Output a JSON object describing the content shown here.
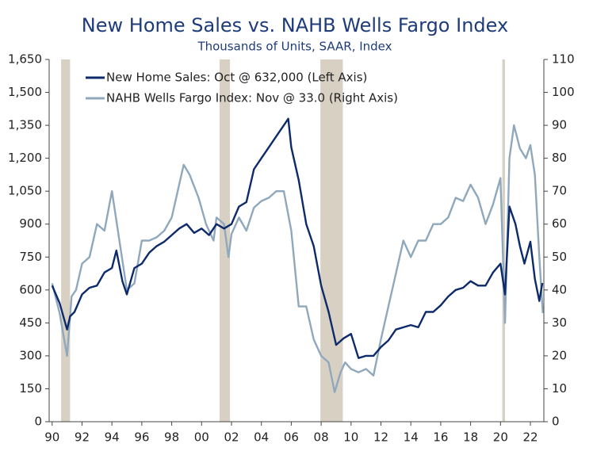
{
  "chart_data": {
    "type": "line",
    "title": "New Home Sales vs. NAHB Wells Fargo Index",
    "subtitle": "Thousands of Units, SAAR, Index",
    "legend": "upper left",
    "recession_color": "#d8d1c3",
    "recessions": [
      [
        1990.6,
        1991.2
      ],
      [
        2001.2,
        2001.9
      ],
      [
        2007.95,
        2009.45
      ],
      [
        2020.12,
        2020.3
      ]
    ],
    "xlim": [
      1989.8,
      2022.9
    ],
    "xticks": [
      {
        "value": 1990,
        "label": "90"
      },
      {
        "value": 1992,
        "label": "92"
      },
      {
        "value": 1994,
        "label": "94"
      },
      {
        "value": 1996,
        "label": "96"
      },
      {
        "value": 1998,
        "label": "98"
      },
      {
        "value": 2000,
        "label": "00"
      },
      {
        "value": 2002,
        "label": "02"
      },
      {
        "value": 2004,
        "label": "04"
      },
      {
        "value": 2006,
        "label": "06"
      },
      {
        "value": 2008,
        "label": "08"
      },
      {
        "value": 2010,
        "label": "10"
      },
      {
        "value": 2012,
        "label": "12"
      },
      {
        "value": 2014,
        "label": "14"
      },
      {
        "value": 2016,
        "label": "16"
      },
      {
        "value": 2018,
        "label": "18"
      },
      {
        "value": 2020,
        "label": "20"
      },
      {
        "value": 2022,
        "label": "22"
      }
    ],
    "ylim": [
      0,
      1650
    ],
    "yticks": [
      0,
      150,
      300,
      450,
      600,
      750,
      900,
      {
        "value": 1050,
        "label": "1,050"
      },
      {
        "value": 1200,
        "label": "1,200"
      },
      {
        "value": 1350,
        "label": "1,350"
      },
      {
        "value": 1500,
        "label": "1,500"
      },
      {
        "value": 1650,
        "label": "1,650"
      }
    ],
    "y2lim": [
      0,
      110
    ],
    "y2ticks": [
      0,
      10,
      20,
      30,
      40,
      50,
      60,
      70,
      80,
      90,
      100,
      110
    ],
    "series": [
      {
        "name": "New Home Sales: Oct @ 632,000 (Left Axis)",
        "color": "#0d2a6b",
        "axis": "y",
        "x": [
          1990.0,
          1990.5,
          1991.0,
          1991.2,
          1991.5,
          1992.0,
          1992.5,
          1993.0,
          1993.5,
          1994.0,
          1994.3,
          1994.7,
          1995.0,
          1995.5,
          1996.0,
          1996.5,
          1997.0,
          1997.5,
          1998.0,
          1998.5,
          1999.0,
          1999.5,
          2000.0,
          2000.5,
          2001.0,
          2001.5,
          2002.0,
          2002.5,
          2003.0,
          2003.5,
          2004.0,
          2004.5,
          2005.0,
          2005.5,
          2005.8,
          2006.0,
          2006.5,
          2007.0,
          2007.5,
          2008.0,
          2008.5,
          2009.0,
          2009.5,
          2010.0,
          2010.5,
          2011.0,
          2011.5,
          2012.0,
          2012.5,
          2013.0,
          2013.5,
          2014.0,
          2014.5,
          2015.0,
          2015.5,
          2016.0,
          2016.5,
          2017.0,
          2017.5,
          2018.0,
          2018.5,
          2019.0,
          2019.5,
          2020.0,
          2020.3,
          2020.6,
          2021.0,
          2021.3,
          2021.6,
          2022.0,
          2022.3,
          2022.6,
          2022.8
        ],
        "values": [
          620,
          540,
          420,
          480,
          500,
          580,
          610,
          620,
          680,
          700,
          780,
          640,
          580,
          700,
          720,
          770,
          800,
          820,
          850,
          880,
          900,
          860,
          880,
          850,
          900,
          880,
          900,
          980,
          1000,
          1150,
          1200,
          1250,
          1300,
          1350,
          1380,
          1250,
          1100,
          900,
          800,
          620,
          500,
          350,
          380,
          400,
          290,
          300,
          300,
          340,
          370,
          420,
          430,
          440,
          430,
          500,
          500,
          530,
          570,
          600,
          610,
          640,
          620,
          620,
          680,
          720,
          580,
          980,
          900,
          800,
          720,
          820,
          650,
          550,
          632
        ]
      },
      {
        "name": "NAHB Wells Fargo Index: Nov @ 33.0 (Right Axis)",
        "color": "#8fa8bc",
        "axis": "y2",
        "x": [
          1990.0,
          1990.5,
          1991.0,
          1991.3,
          1991.6,
          1992.0,
          1992.5,
          1993.0,
          1993.5,
          1994.0,
          1994.5,
          1995.0,
          1995.5,
          1996.0,
          1996.5,
          1997.0,
          1997.5,
          1998.0,
          1998.8,
          1999.2,
          1999.8,
          2000.3,
          2000.8,
          2001.0,
          2001.5,
          2001.8,
          2002.0,
          2002.5,
          2003.0,
          2003.5,
          2004.0,
          2004.5,
          2005.0,
          2005.5,
          2006.0,
          2006.5,
          2007.0,
          2007.5,
          2008.0,
          2008.5,
          2008.9,
          2009.3,
          2009.6,
          2010.0,
          2010.5,
          2011.0,
          2011.5,
          2012.0,
          2012.5,
          2013.0,
          2013.5,
          2014.0,
          2014.5,
          2015.0,
          2015.5,
          2016.0,
          2016.5,
          2017.0,
          2017.5,
          2018.0,
          2018.5,
          2019.0,
          2019.5,
          2020.0,
          2020.3,
          2020.6,
          2020.9,
          2021.3,
          2021.7,
          2022.0,
          2022.3,
          2022.6,
          2022.83
        ],
        "values": [
          42,
          33,
          20,
          38,
          40,
          48,
          50,
          60,
          58,
          70,
          55,
          40,
          42,
          55,
          55,
          56,
          58,
          62,
          78,
          75,
          68,
          60,
          55,
          62,
          60,
          50,
          57,
          62,
          58,
          65,
          67,
          68,
          70,
          70,
          58,
          35,
          35,
          25,
          20,
          18,
          9,
          15,
          18,
          16,
          15,
          16,
          14,
          25,
          35,
          45,
          55,
          50,
          55,
          55,
          60,
          60,
          62,
          68,
          67,
          72,
          68,
          60,
          66,
          74,
          30,
          80,
          90,
          83,
          80,
          84,
          75,
          50,
          33
        ]
      }
    ]
  }
}
